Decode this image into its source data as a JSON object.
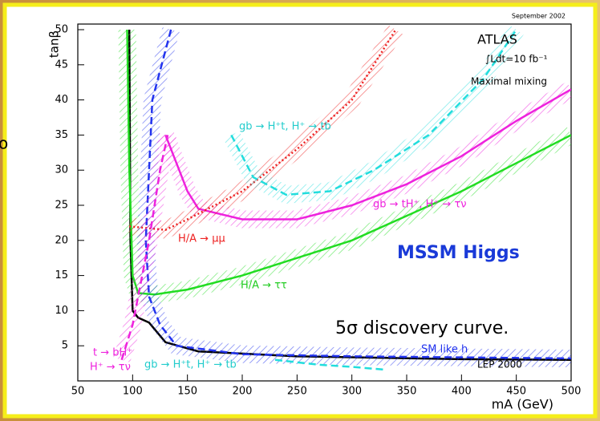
{
  "chart_data": {
    "type": "line",
    "title": "September 2002",
    "xlabel": "mA (GeV)",
    "ylabel": "tanβ",
    "xlim": [
      50,
      500
    ],
    "ylim": [
      0,
      50
    ],
    "xticks": [
      50,
      100,
      150,
      200,
      250,
      300,
      350,
      400,
      450,
      500
    ],
    "yticks": [
      5,
      10,
      15,
      20,
      25,
      30,
      35,
      40,
      45,
      50
    ],
    "series": [
      {
        "name": "LEP 2000",
        "color": "#000000",
        "style": "solid",
        "band": false,
        "x": [
          97,
          98,
          100,
          105,
          115,
          130,
          160,
          250,
          400,
          500
        ],
        "values": [
          50,
          20,
          10,
          9,
          8.3,
          5.5,
          4.2,
          3.5,
          3.1,
          3
        ]
      },
      {
        "name": "H/A → ττ",
        "color": "#22dd22",
        "style": "solid",
        "band": true,
        "x": [
          95,
          97,
          100,
          105,
          120,
          150,
          200,
          250,
          300,
          400,
          450,
          500
        ],
        "values": [
          50,
          30,
          15,
          12.5,
          12.3,
          13,
          15,
          17.5,
          20,
          27,
          31,
          35
        ]
      },
      {
        "name": "gb → tH⁺, H⁺ → τν",
        "color": "#ee22dd",
        "style": "solid",
        "band": true,
        "x": [
          130,
          150,
          160,
          200,
          250,
          300,
          350,
          400,
          450,
          500
        ],
        "values": [
          35,
          27,
          24.5,
          23,
          23,
          25,
          28,
          32,
          37,
          41.5
        ]
      },
      {
        "name": "H/A → μμ",
        "color": "#ee2222",
        "style": "dotted",
        "band": true,
        "x": [
          97,
          130,
          150,
          200,
          250,
          300,
          340
        ],
        "values": [
          22,
          21.5,
          23,
          27,
          33,
          40,
          50
        ]
      },
      {
        "name": "gb → H⁺t, H⁺ → tb",
        "color": "#22dddd",
        "style": "dashed",
        "band": true,
        "x": [
          190,
          210,
          240,
          280,
          320,
          370,
          420,
          450
        ],
        "values": [
          35,
          29,
          26.5,
          27,
          30,
          35,
          43,
          50
        ]
      },
      {
        "name": "SM like h",
        "color": "#2233ee",
        "style": "dashed",
        "band": true,
        "x": [
          135,
          118,
          112,
          115,
          125,
          140,
          200,
          300,
          500
        ],
        "values": [
          50,
          40,
          20,
          12,
          8,
          5,
          3.8,
          3.5,
          3.2
        ]
      },
      {
        "name": "t → bH⁺",
        "color": "#ee22dd",
        "style": "dashed",
        "band": true,
        "x": [
          90,
          100,
          115,
          125,
          132
        ],
        "values": [
          3,
          8,
          20,
          30,
          35
        ]
      },
      {
        "name": "gb → H⁺t, H⁺ → tb",
        "color": "#22dddd",
        "style": "dashed",
        "band": false,
        "x": [
          230,
          270,
          300,
          330
        ],
        "values": [
          3,
          2.3,
          2,
          1.6
        ]
      }
    ],
    "annotations": [
      {
        "text": "ATLAS",
        "color": "#000000"
      },
      {
        "text": "∫Ldt=10 fb⁻¹",
        "color": "#000000"
      },
      {
        "text": "Maximal mixing",
        "color": "#000000"
      },
      {
        "text": "gb → H⁺t, H⁺ → tb",
        "color": "#22cccc"
      },
      {
        "text": "gb → tH⁺, H⁺ → τν",
        "color": "#ee22dd"
      },
      {
        "text": "H/A → μμ",
        "color": "#ee2222"
      },
      {
        "text": "H/A → ττ",
        "color": "#22cc22"
      },
      {
        "text": "MSSM Higgs",
        "color": "#1a3ad8"
      },
      {
        "text": "5σ discovery curve.",
        "color": "#000000"
      },
      {
        "text": "SM like h",
        "color": "#2233ee"
      },
      {
        "text": "LEP 2000",
        "color": "#000000"
      },
      {
        "text": "t → bH⁺",
        "color": "#ee22dd"
      },
      {
        "text": "H⁺ → τν",
        "color": "#ee22dd"
      },
      {
        "text": "gb → H⁺t, H⁺ → tb",
        "color": "#22cccc"
      },
      {
        "text": "o",
        "color": "#000000"
      }
    ]
  }
}
